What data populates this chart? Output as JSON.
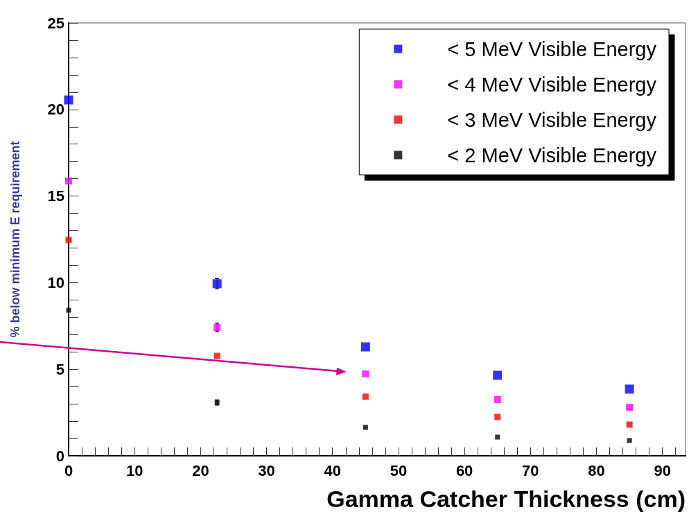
{
  "chart_data": {
    "type": "scatter",
    "xlabel": "Gamma Catcher Thickness (cm)",
    "ylabel": "% below minimum E requirement",
    "x": [
      0,
      22.5,
      45,
      65,
      85
    ],
    "series": [
      {
        "name": "< 5 MeV Visible Energy",
        "color": "#0000ff",
        "values": [
          20.55,
          9.94,
          6.29,
          4.65,
          3.85
        ],
        "errors": [
          null,
          0.3,
          null,
          null,
          null
        ]
      },
      {
        "name": "< 4 MeV Visible Energy",
        "color": "#ff00ff",
        "values": [
          15.87,
          7.41,
          4.73,
          3.25,
          2.8
        ],
        "errors": [
          null,
          0.25,
          null,
          null,
          null
        ]
      },
      {
        "name": "< 3 MeV Visible Energy",
        "color": "#ff0000",
        "values": [
          12.46,
          5.77,
          3.41,
          2.24,
          1.8
        ]
      },
      {
        "name": "< 2 MeV Visible Energy",
        "color": "#000000",
        "values": [
          8.41,
          3.08,
          1.64,
          1.08,
          0.88
        ],
        "errors": [
          null,
          0.15,
          null,
          null,
          null
        ]
      }
    ],
    "xlim": [
      0,
      93.5
    ],
    "xticks": [
      0,
      {
        "value": 2,
        "label": null
      },
      {
        "value": 4,
        "label": null
      },
      {
        "value": 6,
        "label": null
      },
      {
        "value": 8,
        "label": null
      },
      10,
      {
        "value": 12,
        "label": null
      },
      {
        "value": 14,
        "label": null
      },
      {
        "value": 16,
        "label": null
      },
      {
        "value": 18,
        "label": null
      },
      20,
      {
        "value": 22,
        "label": null
      },
      {
        "value": 24,
        "label": null
      },
      {
        "value": 26,
        "label": null
      },
      {
        "value": 28,
        "label": null
      },
      30,
      {
        "value": 32,
        "label": null
      },
      {
        "value": 34,
        "label": null
      },
      {
        "value": 36,
        "label": null
      },
      {
        "value": 38,
        "label": null
      },
      40,
      {
        "value": 42,
        "label": null
      },
      {
        "value": 44,
        "label": null
      },
      {
        "value": 46,
        "label": null
      },
      {
        "value": 48,
        "label": null
      },
      50,
      {
        "value": 52,
        "label": null
      },
      {
        "value": 54,
        "label": null
      },
      {
        "value": 56,
        "label": null
      },
      {
        "value": 58,
        "label": null
      },
      60,
      {
        "value": 62,
        "label": null
      },
      {
        "value": 64,
        "label": null
      },
      {
        "value": 66,
        "label": null
      },
      {
        "value": 68,
        "label": null
      },
      70,
      {
        "value": 72,
        "label": null
      },
      {
        "value": 74,
        "label": null
      },
      {
        "value": 76,
        "label": null
      },
      {
        "value": 78,
        "label": null
      },
      80,
      {
        "value": 82,
        "label": null
      },
      {
        "value": 84,
        "label": null
      },
      {
        "value": 86,
        "label": null
      },
      {
        "value": 88,
        "label": null
      },
      90,
      {
        "value": 92,
        "label": null
      }
    ],
    "ylim": [
      0,
      25
    ],
    "yticks": [
      0,
      {
        "value": 1,
        "label": null
      },
      {
        "value": 2,
        "label": null
      },
      {
        "value": 3,
        "label": null
      },
      {
        "value": 4,
        "label": null
      },
      5,
      {
        "value": 6,
        "label": null
      },
      {
        "value": 7,
        "label": null
      },
      {
        "value": 8,
        "label": null
      },
      {
        "value": 9,
        "label": null
      },
      10,
      {
        "value": 11,
        "label": null
      },
      {
        "value": 12,
        "label": null
      },
      {
        "value": 13,
        "label": null
      },
      {
        "value": 14,
        "label": null
      },
      15,
      {
        "value": 16,
        "label": null
      },
      {
        "value": 17,
        "label": null
      },
      {
        "value": 18,
        "label": null
      },
      {
        "value": 19,
        "label": null
      },
      20,
      {
        "value": 21,
        "label": null
      },
      {
        "value": 22,
        "label": null
      },
      {
        "value": 23,
        "label": null
      },
      {
        "value": 24,
        "label": null
      },
      25
    ],
    "grid": false,
    "legend": "top right",
    "marker": "square"
  }
}
